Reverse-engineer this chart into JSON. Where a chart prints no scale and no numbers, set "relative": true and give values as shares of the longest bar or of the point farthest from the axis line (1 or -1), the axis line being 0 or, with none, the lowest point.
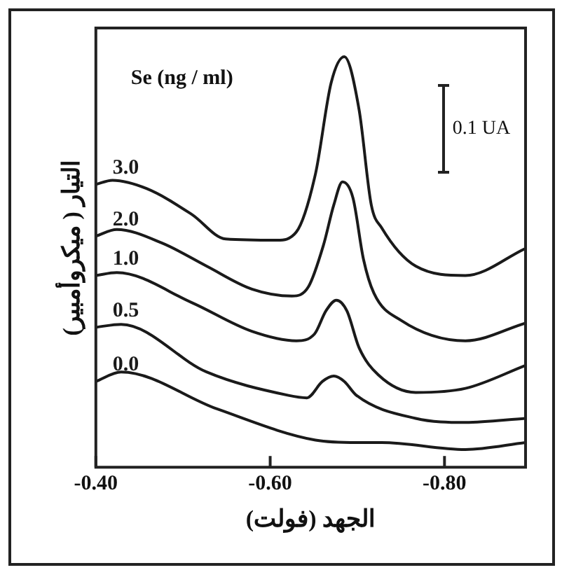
{
  "chart_data": {
    "type": "line",
    "xlabel": "الجهد (فولت)",
    "ylabel": "التيار ( ميكروأمبير)",
    "relative": true,
    "marker": "none",
    "line_style": "solid",
    "xlim": [
      -0.4,
      -0.893
    ],
    "xticks": [
      {
        "value": -0.4,
        "label": "-0.40"
      },
      {
        "value": -0.6,
        "label": "-0.60"
      },
      {
        "value": -0.8,
        "label": "-0.80"
      }
    ],
    "annotations": [
      "Se (ng / ml)",
      "0.1 UA"
    ],
    "series": [
      {
        "name": "3.0",
        "color": "#1a1a1a",
        "x": [
          -0.4,
          -0.419,
          -0.458,
          -0.51,
          -0.549,
          -0.608,
          -0.63,
          -0.652,
          -0.67,
          -0.685,
          -0.702,
          -0.716,
          -0.728,
          -0.767,
          -0.824,
          -0.893
        ],
        "values": [
          0.689,
          0.699,
          0.679,
          0.616,
          0.556,
          0.553,
          0.573,
          0.715,
          0.937,
          1.0,
          0.871,
          0.639,
          0.583,
          0.49,
          0.467,
          0.533
        ]
      },
      {
        "name": "2.0",
        "color": "#1a1a1a",
        "x": [
          -0.4,
          -0.424,
          -0.476,
          -0.527,
          -0.579,
          -0.625,
          -0.644,
          -0.661,
          -0.673,
          -0.683,
          -0.695,
          -0.707,
          -0.719,
          -0.75,
          -0.824,
          -0.893
        ],
        "values": [
          0.563,
          0.579,
          0.546,
          0.49,
          0.434,
          0.417,
          0.44,
          0.54,
          0.639,
          0.695,
          0.656,
          0.507,
          0.424,
          0.358,
          0.308,
          0.351
        ]
      },
      {
        "name": "1.0",
        "color": "#1a1a1a",
        "x": [
          -0.4,
          -0.424,
          -0.51,
          -0.579,
          -0.63,
          -0.651,
          -0.664,
          -0.676,
          -0.688,
          -0.702,
          -0.724,
          -0.767,
          -0.824,
          -0.893
        ],
        "values": [
          0.467,
          0.474,
          0.401,
          0.331,
          0.308,
          0.325,
          0.381,
          0.407,
          0.381,
          0.291,
          0.225,
          0.182,
          0.192,
          0.248
        ]
      },
      {
        "name": "0.5",
        "color": "#1a1a1a",
        "x": [
          -0.4,
          -0.429,
          -0.527,
          -0.621,
          -0.642,
          -0.66,
          -0.673,
          -0.685,
          -0.699,
          -0.767,
          -0.824,
          -0.893
        ],
        "values": [
          0.341,
          0.348,
          0.232,
          0.175,
          0.169,
          0.209,
          0.222,
          0.209,
          0.175,
          0.119,
          0.109,
          0.119
        ]
      },
      {
        "name": "0.0",
        "color": "#1a1a1a",
        "x": [
          -0.4,
          -0.429,
          -0.539,
          -0.652,
          -0.7,
          -0.728,
          -0.824,
          -0.893
        ],
        "values": [
          0.209,
          0.232,
          0.142,
          0.066,
          0.06,
          0.06,
          0.043,
          0.06
        ]
      }
    ]
  }
}
